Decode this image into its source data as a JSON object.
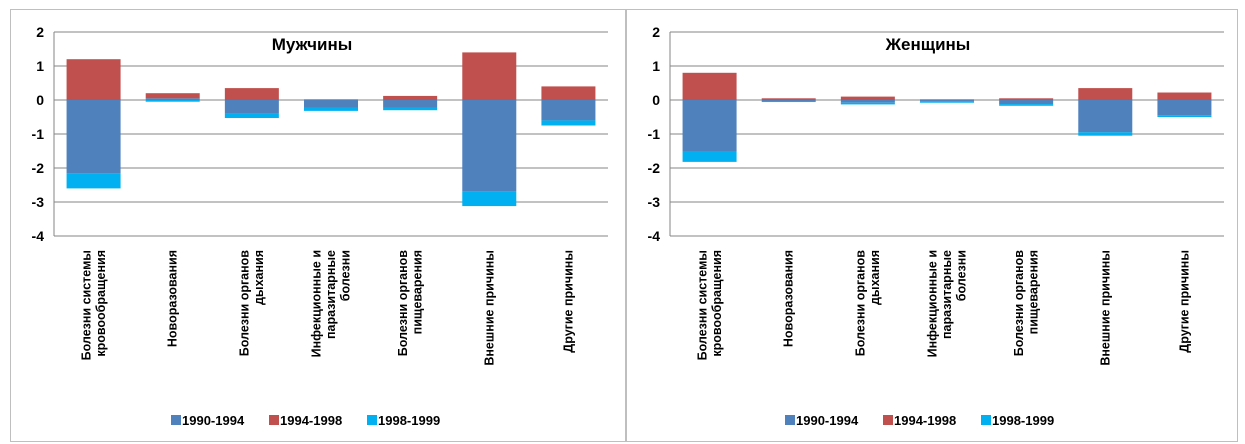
{
  "colors": {
    "1990-1994": "#4f81bd",
    "1994-1998": "#c0504d",
    "1998-1999": "#00b0f0",
    "grid": "#868686",
    "axis": "#868686"
  },
  "chart_data": [
    {
      "type": "bar",
      "stacked": true,
      "title": "Мужчины",
      "categories": [
        [
          "Болезни системы",
          "кровообращения"
        ],
        [
          "Новоразования"
        ],
        [
          "Болезни органов",
          "дыхания"
        ],
        [
          "Инфекционные и",
          "паразитарные",
          "болезни"
        ],
        [
          "Болезни органов",
          "пищеварения"
        ],
        [
          "Внешние причины"
        ],
        [
          "Другие причины"
        ]
      ],
      "series": [
        {
          "name": "1990-1994",
          "values": [
            -2.15,
            0.05,
            -0.4,
            -0.22,
            -0.22,
            -2.7,
            -0.6
          ]
        },
        {
          "name": "1994-1998",
          "values": [
            1.2,
            0.15,
            0.35,
            0.02,
            0.12,
            1.4,
            0.4
          ]
        },
        {
          "name": "1998-1999",
          "values": [
            -0.45,
            -0.05,
            -0.13,
            -0.1,
            -0.08,
            -0.42,
            -0.15
          ]
        }
      ],
      "ylim": [
        -4,
        2
      ],
      "yticks": [
        "2",
        "1",
        "0",
        "-1",
        "-2",
        "-3",
        "-4"
      ],
      "legend_position": "bottom",
      "grid": true
    },
    {
      "type": "bar",
      "stacked": true,
      "title": "Женщины",
      "categories": [
        [
          "Болезни системы",
          "кровообращения"
        ],
        [
          "Новоразования"
        ],
        [
          "Болезни органов",
          "дыхания"
        ],
        [
          "Инфекционные и",
          "паразитарные",
          "болезни"
        ],
        [
          "Болезни органов",
          "пищеварения"
        ],
        [
          "Внешние причины"
        ],
        [
          "Другие причины"
        ]
      ],
      "series": [
        {
          "name": "1990-1994",
          "values": [
            -1.5,
            -0.03,
            -0.08,
            -0.05,
            -0.12,
            -0.95,
            -0.45
          ]
        },
        {
          "name": "1994-1998",
          "values": [
            0.8,
            0.05,
            0.1,
            0.02,
            0.05,
            0.35,
            0.22
          ]
        },
        {
          "name": "1998-1999",
          "values": [
            -0.32,
            -0.03,
            -0.05,
            -0.03,
            -0.05,
            -0.1,
            -0.05
          ]
        }
      ],
      "ylim": [
        -4,
        2
      ],
      "yticks": [
        "2",
        "1",
        "0",
        "-1",
        "-2",
        "-3",
        "-4"
      ],
      "legend_position": "bottom",
      "grid": true
    }
  ]
}
